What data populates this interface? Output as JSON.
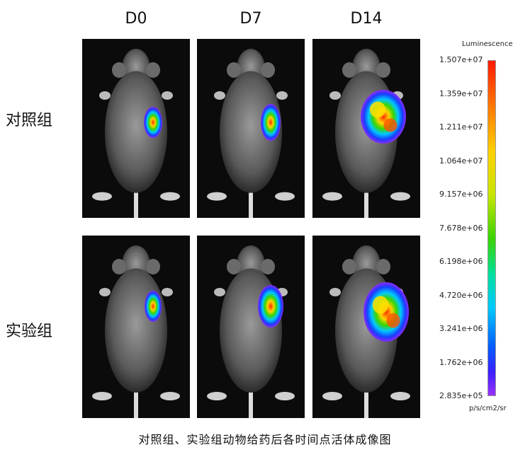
{
  "columns": [
    "D0",
    "D7",
    "D14"
  ],
  "rows": [
    "对照组",
    "实验组"
  ],
  "colorbar": {
    "title": "Luminescence",
    "unit": "p/s/cm2/sr",
    "ticks": [
      "1.507e+07",
      "1.359e+07",
      "1.211e+07",
      "1.064e+07",
      "9.157e+06",
      "7.678e+06",
      "6.198e+06",
      "4.720e+06",
      "3.241e+06",
      "1.762e+06",
      "2.835e+05"
    ]
  },
  "caption": "对照组、实验组动物给药后各时间点活体成像图"
}
